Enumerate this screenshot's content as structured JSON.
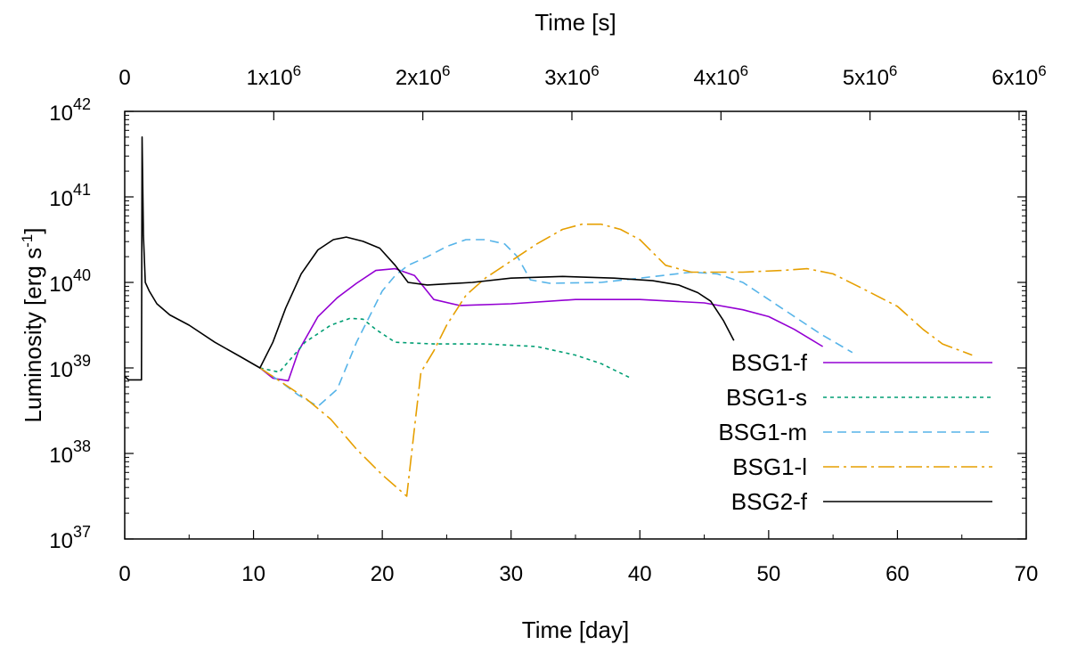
{
  "chart_data": {
    "type": "line",
    "title": "",
    "xlabel": "Time [day]",
    "x2label": "Time [s]",
    "ylabel_parts": {
      "main": "Luminosity [erg s",
      "sup": "-1",
      "end": "]"
    },
    "xlim": [
      0,
      70
    ],
    "ylim_log10": [
      37,
      42
    ],
    "y_scale": "log",
    "legend_position": "bottom-right",
    "x_ticks": [
      {
        "value": 0,
        "label": "0"
      },
      {
        "value": 10,
        "label": "10"
      },
      {
        "value": 20,
        "label": "20"
      },
      {
        "value": 30,
        "label": "30"
      },
      {
        "value": 40,
        "label": "40"
      },
      {
        "value": 50,
        "label": "50"
      },
      {
        "value": 60,
        "label": "60"
      },
      {
        "value": 70,
        "label": "70"
      }
    ],
    "x2_ticks": [
      {
        "value_s": 0,
        "base": "0",
        "sup": ""
      },
      {
        "value_s": 1000000,
        "base": "1x10",
        "sup": "6"
      },
      {
        "value_s": 2000000,
        "base": "2x10",
        "sup": "6"
      },
      {
        "value_s": 3000000,
        "base": "3x10",
        "sup": "6"
      },
      {
        "value_s": 4000000,
        "base": "4x10",
        "sup": "6"
      },
      {
        "value_s": 5000000,
        "base": "5x10",
        "sup": "6"
      },
      {
        "value_s": 6000000,
        "base": "6x10",
        "sup": "6"
      }
    ],
    "y_ticks": [
      {
        "exp": 37,
        "base": "10",
        "sup": "37"
      },
      {
        "exp": 38,
        "base": "10",
        "sup": "38"
      },
      {
        "exp": 39,
        "base": "10",
        "sup": "39"
      },
      {
        "exp": 40,
        "base": "10",
        "sup": "40"
      },
      {
        "exp": 41,
        "base": "10",
        "sup": "41"
      },
      {
        "exp": 42,
        "base": "10",
        "sup": "42"
      }
    ],
    "series": [
      {
        "name": "BSG1-f",
        "color": "#9400d3",
        "dash": "",
        "points": [
          [
            10.5,
            39.0
          ],
          [
            11.5,
            38.88
          ],
          [
            12.7,
            38.85
          ],
          [
            13.5,
            39.2
          ],
          [
            15,
            39.6
          ],
          [
            16.5,
            39.82
          ],
          [
            18,
            39.99
          ],
          [
            19.5,
            40.14
          ],
          [
            21,
            40.16
          ],
          [
            22.5,
            40.08
          ],
          [
            24,
            39.8
          ],
          [
            26,
            39.73
          ],
          [
            30,
            39.75
          ],
          [
            35,
            39.8
          ],
          [
            40,
            39.8
          ],
          [
            45,
            39.76
          ],
          [
            48,
            39.68
          ],
          [
            50,
            39.6
          ],
          [
            52,
            39.45
          ],
          [
            54.2,
            39.25
          ]
        ]
      },
      {
        "name": "BSG1-s",
        "color": "#009e73",
        "dash": "4,4",
        "points": [
          [
            10.5,
            39.0
          ],
          [
            12,
            38.95
          ],
          [
            14,
            39.3
          ],
          [
            16,
            39.5
          ],
          [
            17.5,
            39.58
          ],
          [
            18.5,
            39.57
          ],
          [
            19.5,
            39.45
          ],
          [
            21,
            39.3
          ],
          [
            24,
            39.28
          ],
          [
            28,
            39.28
          ],
          [
            32,
            39.25
          ],
          [
            35,
            39.15
          ],
          [
            37,
            39.05
          ],
          [
            39.3,
            38.88
          ]
        ]
      },
      {
        "name": "BSG1-m",
        "color": "#56b4e9",
        "dash": "10,6",
        "points": [
          [
            10.5,
            39.0
          ],
          [
            12,
            38.85
          ],
          [
            13.5,
            38.68
          ],
          [
            15,
            38.55
          ],
          [
            16.5,
            38.75
          ],
          [
            18,
            39.3
          ],
          [
            19,
            39.6
          ],
          [
            20,
            39.9
          ],
          [
            21,
            40.08
          ],
          [
            22,
            40.2
          ],
          [
            23.5,
            40.3
          ],
          [
            25,
            40.42
          ],
          [
            26.5,
            40.5
          ],
          [
            28,
            40.5
          ],
          [
            29.5,
            40.45
          ],
          [
            30.5,
            40.3
          ],
          [
            31.5,
            40.03
          ],
          [
            33,
            39.99
          ],
          [
            37,
            40.0
          ],
          [
            40,
            40.05
          ],
          [
            44,
            40.12
          ],
          [
            46,
            40.1
          ],
          [
            48,
            40.0
          ],
          [
            50,
            39.8
          ],
          [
            52,
            39.6
          ],
          [
            54,
            39.4
          ],
          [
            56.5,
            39.18
          ]
        ]
      },
      {
        "name": "BSG1-l",
        "color": "#e69f00",
        "dash": "18,5,3,5",
        "points": [
          [
            10.5,
            39.0
          ],
          [
            12,
            38.85
          ],
          [
            14,
            38.65
          ],
          [
            16,
            38.4
          ],
          [
            18,
            38.05
          ],
          [
            20,
            37.75
          ],
          [
            21.9,
            37.5
          ],
          [
            22.5,
            38.3
          ],
          [
            23,
            38.95
          ],
          [
            24,
            39.2
          ],
          [
            25,
            39.5
          ],
          [
            26.5,
            39.85
          ],
          [
            28,
            40.05
          ],
          [
            30,
            40.25
          ],
          [
            32,
            40.45
          ],
          [
            34,
            40.62
          ],
          [
            35.5,
            40.68
          ],
          [
            37,
            40.68
          ],
          [
            38.5,
            40.62
          ],
          [
            40,
            40.5
          ],
          [
            41,
            40.35
          ],
          [
            42,
            40.2
          ],
          [
            44,
            40.12
          ],
          [
            48,
            40.12
          ],
          [
            51,
            40.14
          ],
          [
            53,
            40.16
          ],
          [
            55,
            40.1
          ],
          [
            57,
            39.95
          ],
          [
            60,
            39.72
          ],
          [
            62,
            39.45
          ],
          [
            63.5,
            39.28
          ],
          [
            65.8,
            39.15
          ]
        ]
      },
      {
        "name": "BSG2-f",
        "color": "#000000",
        "dash": "",
        "points": [
          [
            0,
            38.9
          ],
          [
            0.3,
            38.86
          ],
          [
            1.3,
            38.86
          ],
          [
            1.35,
            41.7
          ],
          [
            1.45,
            40.55
          ],
          [
            1.6,
            40.0
          ],
          [
            1.9,
            39.9
          ],
          [
            2.5,
            39.75
          ],
          [
            3.5,
            39.62
          ],
          [
            5,
            39.5
          ],
          [
            7,
            39.3
          ],
          [
            9,
            39.13
          ],
          [
            10.5,
            39.0
          ],
          [
            11.5,
            39.3
          ],
          [
            12.5,
            39.7
          ],
          [
            13.7,
            40.1
          ],
          [
            15,
            40.38
          ],
          [
            16.2,
            40.5
          ],
          [
            17.2,
            40.53
          ],
          [
            18.5,
            40.48
          ],
          [
            19.8,
            40.4
          ],
          [
            21,
            40.2
          ],
          [
            22,
            40.0
          ],
          [
            23.5,
            39.97
          ],
          [
            27,
            40.0
          ],
          [
            30,
            40.05
          ],
          [
            34,
            40.07
          ],
          [
            38,
            40.05
          ],
          [
            41,
            40.02
          ],
          [
            43,
            39.97
          ],
          [
            44.5,
            39.88
          ],
          [
            45.5,
            39.78
          ],
          [
            46.5,
            39.55
          ],
          [
            47.3,
            39.32
          ]
        ]
      }
    ]
  }
}
